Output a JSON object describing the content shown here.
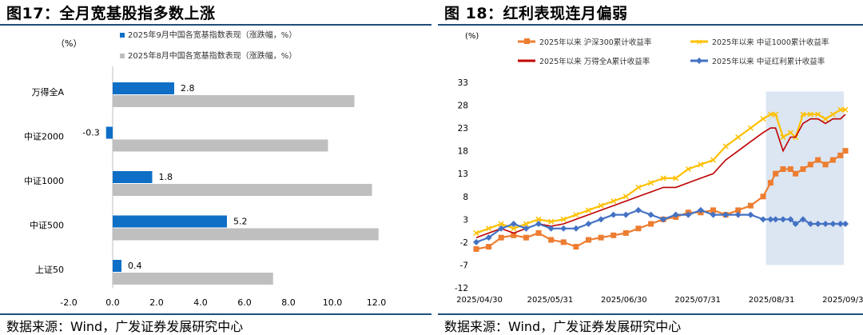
{
  "fig17": {
    "title": "图17：全月宽基股指多数上涨",
    "source": "数据来源：Wind，广发证券发展研究中心",
    "chart_data": {
      "type": "bar",
      "orientation": "horizontal",
      "unit_label": "（%）",
      "categories": [
        "万得全A",
        "中证2000",
        "中证1000",
        "中证500",
        "上证50"
      ],
      "series": [
        {
          "name": "2025年9月中国各宽基指数表现（涨跌幅，%）",
          "color": "#0f6fc6",
          "values": [
            2.8,
            -0.3,
            1.8,
            5.2,
            0.4
          ],
          "data_labels": [
            "2.8",
            "-0.3",
            "1.8",
            "5.2",
            "0.4"
          ]
        },
        {
          "name": "2025年8月中国各宽基指数表现（涨跌幅，%）",
          "color": "#bfbfbf",
          "values": [
            11.0,
            9.8,
            11.8,
            12.1,
            7.3
          ]
        }
      ],
      "xlim": [
        -2.0,
        12.0
      ],
      "x_ticks": [
        "-2.0",
        "0.0",
        "2.0",
        "4.0",
        "6.0",
        "8.0",
        "10.0",
        "12.0"
      ],
      "x_tick_values": [
        -2,
        0,
        2,
        4,
        6,
        8,
        10,
        12
      ],
      "legend_position": "top",
      "grid": false
    }
  },
  "fig18": {
    "title": "图 18：红利表现连月偏弱",
    "source": "数据来源：Wind，广发证券发展研究中心",
    "chart_data": {
      "type": "line",
      "unit_label": "(%)",
      "x_ticks": [
        "2025/04/30",
        "2025/05/31",
        "2025/06/30",
        "2025/07/31",
        "2025/08/31",
        "2025/09/30"
      ],
      "y_ticks": [
        "33",
        "28",
        "23",
        "18",
        "13",
        "8",
        "3",
        "-2",
        "-7",
        "-12"
      ],
      "y_tick_values": [
        33,
        28,
        23,
        18,
        13,
        8,
        3,
        -2,
        -7,
        -12
      ],
      "ylim": [
        -12,
        33
      ],
      "highlight_period": [
        "2025/08/31",
        "2025/09/30"
      ],
      "highlight_color": "#dce6f2",
      "legend_position": "top",
      "grid": false,
      "series": [
        {
          "name": "2025年以来 沪深300累计收益率",
          "color": "#ed7d31",
          "marker": "square",
          "points": [
            [
              0,
              -3.5
            ],
            [
              5,
              -3
            ],
            [
              10,
              -1
            ],
            [
              15,
              -0.5
            ],
            [
              20,
              -1
            ],
            [
              25,
              0
            ],
            [
              30,
              -1.5
            ],
            [
              35,
              -2
            ],
            [
              40,
              -3
            ],
            [
              45,
              -1.5
            ],
            [
              50,
              -1
            ],
            [
              55,
              -0.5
            ],
            [
              60,
              0
            ],
            [
              65,
              1
            ],
            [
              70,
              2
            ],
            [
              75,
              3
            ],
            [
              80,
              3.5
            ],
            [
              85,
              4.5
            ],
            [
              90,
              4.5
            ],
            [
              95,
              5
            ],
            [
              100,
              4
            ],
            [
              105,
              5
            ],
            [
              110,
              6
            ],
            [
              115,
              8
            ],
            [
              118,
              11
            ],
            [
              120,
              13
            ],
            [
              123,
              14
            ],
            [
              126,
              14
            ],
            [
              128,
              13
            ],
            [
              131,
              14
            ],
            [
              134,
              15
            ],
            [
              137,
              16
            ],
            [
              140,
              15
            ],
            [
              143,
              16
            ],
            [
              146,
              17
            ],
            [
              148,
              18
            ]
          ]
        },
        {
          "name": "2025年以来 中证1000累计收益率",
          "color": "#ffc000",
          "marker": "x",
          "points": [
            [
              0,
              0
            ],
            [
              5,
              1
            ],
            [
              10,
              2
            ],
            [
              15,
              1
            ],
            [
              20,
              2
            ],
            [
              25,
              3
            ],
            [
              30,
              2.5
            ],
            [
              35,
              3
            ],
            [
              40,
              4
            ],
            [
              45,
              5
            ],
            [
              50,
              6
            ],
            [
              55,
              7
            ],
            [
              60,
              8
            ],
            [
              65,
              10
            ],
            [
              70,
              11
            ],
            [
              75,
              12
            ],
            [
              80,
              12
            ],
            [
              85,
              14
            ],
            [
              90,
              15
            ],
            [
              95,
              16
            ],
            [
              100,
              19
            ],
            [
              105,
              21
            ],
            [
              110,
              23
            ],
            [
              115,
              25
            ],
            [
              118,
              26
            ],
            [
              120,
              26
            ],
            [
              123,
              21
            ],
            [
              126,
              22
            ],
            [
              128,
              21
            ],
            [
              131,
              26
            ],
            [
              134,
              26
            ],
            [
              137,
              26
            ],
            [
              140,
              25
            ],
            [
              143,
              26
            ],
            [
              146,
              27
            ],
            [
              148,
              27
            ]
          ]
        },
        {
          "name": "2025年以来 万得全A累计收益率",
          "color": "#c00000",
          "marker": "line",
          "points": [
            [
              0,
              -1
            ],
            [
              5,
              0
            ],
            [
              10,
              1
            ],
            [
              15,
              0
            ],
            [
              20,
              1
            ],
            [
              25,
              2
            ],
            [
              30,
              1.5
            ],
            [
              35,
              2
            ],
            [
              40,
              3
            ],
            [
              45,
              4
            ],
            [
              50,
              5
            ],
            [
              55,
              6
            ],
            [
              60,
              7
            ],
            [
              65,
              8
            ],
            [
              70,
              9
            ],
            [
              75,
              10
            ],
            [
              80,
              10
            ],
            [
              85,
              11
            ],
            [
              90,
              12
            ],
            [
              95,
              13
            ],
            [
              100,
              16
            ],
            [
              105,
              18
            ],
            [
              110,
              20
            ],
            [
              115,
              22
            ],
            [
              118,
              23
            ],
            [
              120,
              23
            ],
            [
              123,
              18
            ],
            [
              126,
              21
            ],
            [
              128,
              21
            ],
            [
              131,
              24
            ],
            [
              134,
              25
            ],
            [
              137,
              25
            ],
            [
              140,
              24
            ],
            [
              143,
              25
            ],
            [
              146,
              25
            ],
            [
              148,
              26
            ]
          ]
        },
        {
          "name": "2025年以来 中证红利累计收益率",
          "color": "#4472c4",
          "marker": "diamond",
          "points": [
            [
              0,
              -2
            ],
            [
              5,
              -1
            ],
            [
              10,
              1
            ],
            [
              15,
              2
            ],
            [
              20,
              1
            ],
            [
              25,
              2
            ],
            [
              30,
              1
            ],
            [
              35,
              1
            ],
            [
              40,
              1
            ],
            [
              45,
              2
            ],
            [
              50,
              3
            ],
            [
              55,
              4
            ],
            [
              60,
              4
            ],
            [
              65,
              5
            ],
            [
              70,
              4
            ],
            [
              75,
              3
            ],
            [
              80,
              4
            ],
            [
              85,
              4
            ],
            [
              90,
              5
            ],
            [
              95,
              4
            ],
            [
              100,
              4
            ],
            [
              105,
              4
            ],
            [
              110,
              4
            ],
            [
              115,
              3
            ],
            [
              118,
              3
            ],
            [
              120,
              3
            ],
            [
              123,
              3
            ],
            [
              126,
              3
            ],
            [
              128,
              2
            ],
            [
              131,
              3
            ],
            [
              134,
              2
            ],
            [
              137,
              2
            ],
            [
              140,
              2
            ],
            [
              143,
              2
            ],
            [
              146,
              2
            ],
            [
              148,
              2
            ]
          ]
        }
      ]
    }
  }
}
